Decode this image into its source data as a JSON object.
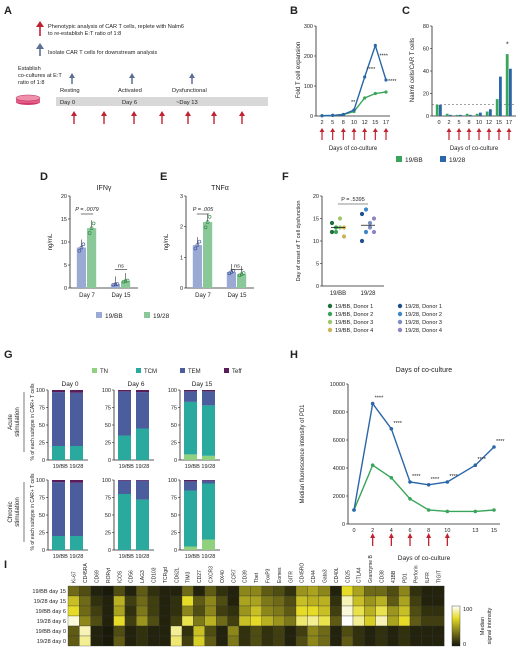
{
  "panelA": {
    "letter": "A",
    "legend_red": "Phenotypic analysis of CAR T cells, replete with Nalm6",
    "legend_red2": "to re-establish E:T ratio of 1:8",
    "legend_blue": "Isolate CAR T cells for downstream analysis",
    "establish": [
      "Establish",
      "co-cultures at E:T",
      "ratio of 1:8"
    ],
    "stages": [
      "Resting",
      "Activated",
      "Dysfunctional"
    ],
    "days": [
      "Day 0",
      "Day 6",
      "~Day 13"
    ],
    "colors": {
      "red": "#c0232f",
      "blue": "#5c6f92"
    }
  },
  "chart_data": [
    {
      "id": "B",
      "type": "line",
      "ylabel": "Fold T cell expansion",
      "xlabel": "Days of co-culture",
      "x": [
        2,
        5,
        8,
        10,
        12,
        15,
        17
      ],
      "ylim": [
        0,
        300
      ],
      "yticks": [
        0,
        100,
        200,
        300
      ],
      "series": [
        {
          "name": "19/BB",
          "color": "#39a55a",
          "values": [
            1,
            2,
            5,
            15,
            60,
            75,
            80
          ]
        },
        {
          "name": "19/28",
          "color": "#2a66a8",
          "values": [
            1,
            2,
            5,
            20,
            130,
            235,
            120
          ]
        }
      ],
      "annotations": [
        "**",
        "****",
        "****",
        "****"
      ]
    },
    {
      "id": "C",
      "type": "bar",
      "ylabel": "Nalm6 cells/CAR T cells",
      "xlabel": "Days of co-culture",
      "categories": [
        "0",
        "2",
        "5",
        "8",
        "10",
        "12",
        "15",
        "17"
      ],
      "ylim": [
        0,
        80
      ],
      "yticks": [
        0,
        20,
        40,
        60,
        80
      ],
      "series": [
        {
          "name": "19/BB",
          "color": "#39a55a",
          "values": [
            10,
            2,
            1,
            2,
            2,
            4,
            15,
            55
          ]
        },
        {
          "name": "19/28",
          "color": "#2a66a8",
          "values": [
            10,
            1,
            1,
            1,
            3,
            6,
            35,
            42
          ]
        }
      ],
      "annotations": [
        "*"
      ]
    },
    {
      "id": "D",
      "type": "bar",
      "title": "IFNγ",
      "ylabel": "ng/mL",
      "categories": [
        "Day 7",
        "Day 15"
      ],
      "ylim": [
        0,
        20
      ],
      "yticks": [
        0,
        5,
        10,
        15,
        20
      ],
      "series": [
        {
          "name": "19/BB",
          "color": "#9aaad4",
          "values": [
            8.8,
            0.8
          ]
        },
        {
          "name": "19/28",
          "color": "#8ac89a",
          "values": [
            13,
            1.5
          ]
        }
      ],
      "annotations": [
        "P = .0079",
        "ns"
      ]
    },
    {
      "id": "E",
      "type": "bar",
      "title": "TNFα",
      "ylabel": "ng/mL",
      "categories": [
        "Day 7",
        "Day 15"
      ],
      "ylim": [
        0,
        3
      ],
      "yticks": [
        0,
        1,
        2,
        3
      ],
      "series": [
        {
          "name": "19/BB",
          "color": "#9aaad4",
          "values": [
            1.4,
            0.52
          ]
        },
        {
          "name": "19/28",
          "color": "#8ac89a",
          "values": [
            2.15,
            0.45
          ]
        }
      ],
      "annotations": [
        "P = .005",
        "ns"
      ]
    },
    {
      "id": "F",
      "type": "scatter",
      "ylabel": "Day of onset of T cell dysfunction",
      "categories": [
        "19/BB",
        "19/28"
      ],
      "ylim": [
        0,
        20
      ],
      "yticks": [
        0,
        5,
        10,
        15,
        20
      ],
      "means": [
        13,
        13.5
      ],
      "points": {
        "19/BB": [
          12,
          13,
          13,
          13,
          14,
          12,
          15,
          11
        ],
        "19/28": [
          10,
          12,
          13,
          15,
          16,
          17,
          14,
          12
        ]
      },
      "legend": [
        {
          "label": "19/BB, Donor 1",
          "color": "#1f6e3c"
        },
        {
          "label": "19/BB, Donor 2",
          "color": "#3aa35a"
        },
        {
          "label": "19/BB, Donor 3",
          "color": "#9cc86b"
        },
        {
          "label": "19/BB, Donor 4",
          "color": "#c9b45a"
        },
        {
          "label": "19/28, Donor 1",
          "color": "#1f4f8f"
        },
        {
          "label": "19/28, Donor 2",
          "color": "#3c86cc"
        },
        {
          "label": "19/28, Donor 3",
          "color": "#7a8fbf"
        },
        {
          "label": "19/28, Donor 4",
          "color": "#8d86c4"
        }
      ],
      "annotations": [
        "P = .5395"
      ]
    },
    {
      "id": "G",
      "type": "bar",
      "ylabel": "% of each subtype in CAR+ T cells",
      "row_labels": [
        "Acute stimulation",
        "Chronic stimulation"
      ],
      "columns": [
        "Day 0",
        "Day 6",
        "Day 15"
      ],
      "categories": [
        "19/BB",
        "19/28"
      ],
      "ylim": [
        0,
        100
      ],
      "yticks": [
        0,
        25,
        50,
        75,
        100
      ],
      "legend": [
        {
          "label": "TN",
          "color": "#8fd17e"
        },
        {
          "label": "TCM",
          "color": "#2aa99f"
        },
        {
          "label": "TEM",
          "color": "#4c5d9d"
        },
        {
          "label": "Teff",
          "color": "#5a1d5c"
        }
      ],
      "stacks": [
        [
          [
            [
              0,
              20,
              77,
              3
            ],
            [
              0,
              20,
              76,
              4
            ]
          ],
          [
            [
              0,
              35,
              63,
              2
            ],
            [
              0,
              45,
              52,
              3
            ]
          ],
          [
            [
              8,
              75,
              15,
              2
            ],
            [
              6,
              72,
              20,
              2
            ]
          ]
        ],
        [
          [
            [
              0,
              20,
              77,
              3
            ],
            [
              0,
              20,
              76,
              4
            ]
          ],
          [
            [
              0,
              80,
              19,
              1
            ],
            [
              0,
              72,
              27,
              1
            ]
          ],
          [
            [
              5,
              80,
              13,
              2
            ],
            [
              15,
              80,
              4,
              1
            ]
          ]
        ]
      ]
    },
    {
      "id": "H",
      "type": "line",
      "title": "Days of co-culture",
      "ylabel": "Median fluorescence intensity of PD1",
      "xlabel": "Days of co-culture",
      "x": [
        0,
        2,
        4,
        6,
        8,
        10,
        13,
        15
      ],
      "ylim": [
        0,
        10000
      ],
      "yticks": [
        0,
        2000,
        4000,
        6000,
        8000,
        10000
      ],
      "series": [
        {
          "name": "19/BB",
          "color": "#39a55a",
          "values": [
            1000,
            4200,
            3300,
            1800,
            1000,
            900,
            900,
            1000
          ]
        },
        {
          "name": "19/28",
          "color": "#2a66a8",
          "values": [
            1000,
            8600,
            6800,
            3000,
            2800,
            3000,
            4200,
            5500
          ]
        }
      ],
      "annotations": [
        "****",
        "****",
        "****",
        "****",
        "****",
        "****",
        "****"
      ]
    },
    {
      "id": "I",
      "type": "heatmap",
      "columns": [
        "Ki-67",
        "CD45RA",
        "CD69",
        "RORγt",
        "ICOS",
        "CD56",
        "LAG3",
        "CD103",
        "TCRgd",
        "CD62L",
        "TIM3",
        "CD27",
        "CXCR3",
        "OX40",
        "CCR7",
        "CD39",
        "Tbet",
        "FoxP3",
        "Eomes",
        "GITR",
        "CD45RO",
        "CD44",
        "Gata3",
        "CD40L",
        "CD25",
        "CTLA4",
        "Granzyme B",
        "CD38",
        "41BB",
        "PD1",
        "Perforin",
        "ILFR",
        "TIGIT"
      ],
      "rows": [
        "19/BB day 15",
        "19/28 day 15",
        "19/BB day 6",
        "19/28 day 6",
        "19/BB day 0",
        "19/28 day 0"
      ],
      "range": [
        0,
        100
      ],
      "legend_title": "Median signal intensity",
      "legend_ticks": [
        "0",
        "100"
      ],
      "values": [
        [
          30,
          20,
          5,
          2,
          20,
          5,
          25,
          10,
          5,
          5,
          30,
          5,
          25,
          10,
          5,
          40,
          40,
          25,
          20,
          10,
          45,
          50,
          40,
          5,
          70,
          50,
          30,
          30,
          20,
          40,
          10,
          5,
          5
        ],
        [
          60,
          30,
          10,
          5,
          55,
          15,
          30,
          15,
          5,
          10,
          70,
          25,
          40,
          20,
          5,
          50,
          50,
          35,
          30,
          20,
          60,
          55,
          55,
          10,
          90,
          60,
          45,
          55,
          25,
          50,
          15,
          5,
          5
        ],
        [
          70,
          30,
          15,
          5,
          50,
          10,
          35,
          15,
          5,
          10,
          40,
          20,
          40,
          15,
          10,
          45,
          60,
          40,
          35,
          25,
          70,
          70,
          60,
          15,
          95,
          75,
          55,
          75,
          45,
          60,
          20,
          10,
          10
        ],
        [
          95,
          40,
          20,
          5,
          70,
          15,
          45,
          20,
          5,
          15,
          75,
          35,
          55,
          30,
          15,
          60,
          70,
          55,
          45,
          35,
          80,
          85,
          75,
          25,
          100,
          85,
          65,
          90,
          50,
          70,
          25,
          15,
          15
        ],
        [
          25,
          90,
          5,
          2,
          20,
          5,
          10,
          5,
          5,
          85,
          10,
          60,
          20,
          5,
          40,
          10,
          20,
          10,
          15,
          5,
          15,
          40,
          30,
          5,
          20,
          10,
          5,
          10,
          5,
          10,
          5,
          5,
          5
        ],
        [
          25,
          85,
          5,
          2,
          25,
          5,
          10,
          5,
          5,
          80,
          15,
          65,
          25,
          5,
          35,
          10,
          20,
          10,
          15,
          5,
          20,
          40,
          30,
          5,
          25,
          10,
          5,
          10,
          5,
          10,
          5,
          5,
          5
        ]
      ]
    }
  ],
  "legends": {
    "bc": [
      "19/BB",
      "19/28"
    ],
    "bc_colors": [
      "#39a55a",
      "#2a66a8"
    ],
    "bars": [
      "19/BB",
      "19/28"
    ]
  }
}
